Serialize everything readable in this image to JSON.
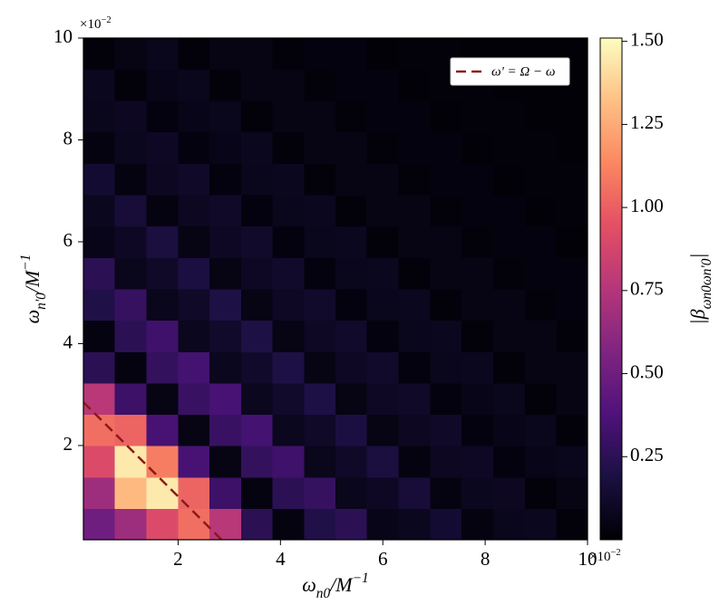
{
  "chart_data": {
    "type": "heatmap",
    "x_label": {
      "base": "ω",
      "sub": "n0",
      "mid": "/M",
      "sup": "−1"
    },
    "y_label": {
      "base": "ω",
      "sub": "n'0",
      "mid": "/M",
      "sup": "−1"
    },
    "colorbar_label": {
      "base": "|β",
      "sub": "ωn0ωn'0",
      "end": "|"
    },
    "offset_text": {
      "base": "×10",
      "sup": "−2"
    },
    "xlim": [
      0.15,
      10
    ],
    "ylim": [
      0.15,
      10
    ],
    "xticks": [
      2,
      4,
      6,
      8,
      10
    ],
    "yticks": [
      2,
      4,
      6,
      8,
      10
    ],
    "clim": [
      0,
      1.51
    ],
    "cticks": [
      0.25,
      {
        "value": 0.5,
        "label": "0.50"
      },
      0.75,
      {
        "value": 1.0,
        "label": "1.00"
      },
      1.25,
      {
        "value": 1.5,
        "label": "1.50"
      }
    ],
    "colormap": "magma",
    "x": [
      0.46,
      1.07,
      1.69,
      2.31,
      2.92,
      3.54,
      4.15,
      4.77,
      5.38,
      6.0,
      6.62,
      7.23,
      7.85,
      8.47,
      9.08,
      9.7
    ],
    "y": [
      0.46,
      1.07,
      1.69,
      2.31,
      2.92,
      3.54,
      4.15,
      4.77,
      5.38,
      6.0,
      6.62,
      7.23,
      7.85,
      8.47,
      9.08,
      9.7
    ],
    "z": [
      [
        0.5,
        0.67,
        0.91,
        1.05,
        0.77,
        0.25,
        0.04,
        0.21,
        0.25,
        0.06,
        0.08,
        0.14,
        0.04,
        0.07,
        0.08,
        0.02
      ],
      [
        0.67,
        1.3,
        1.45,
        1.02,
        0.31,
        0.04,
        0.25,
        0.29,
        0.07,
        0.1,
        0.16,
        0.04,
        0.08,
        0.09,
        0.02,
        0.05
      ],
      [
        0.91,
        1.45,
        1.1,
        0.35,
        0.05,
        0.28,
        0.32,
        0.07,
        0.11,
        0.18,
        0.04,
        0.09,
        0.1,
        0.03,
        0.06,
        0.07
      ],
      [
        1.05,
        1.02,
        0.35,
        0.05,
        0.3,
        0.34,
        0.08,
        0.11,
        0.19,
        0.05,
        0.09,
        0.11,
        0.03,
        0.06,
        0.07,
        0.02
      ],
      [
        0.77,
        0.31,
        0.05,
        0.3,
        0.35,
        0.08,
        0.12,
        0.2,
        0.05,
        0.1,
        0.11,
        0.03,
        0.06,
        0.07,
        0.02,
        0.05
      ],
      [
        0.25,
        0.04,
        0.28,
        0.34,
        0.08,
        0.12,
        0.2,
        0.05,
        0.1,
        0.12,
        0.03,
        0.07,
        0.08,
        0.02,
        0.05,
        0.05
      ],
      [
        0.04,
        0.25,
        0.32,
        0.08,
        0.12,
        0.2,
        0.05,
        0.1,
        0.12,
        0.03,
        0.07,
        0.08,
        0.02,
        0.05,
        0.05,
        0.02
      ],
      [
        0.21,
        0.29,
        0.07,
        0.11,
        0.2,
        0.05,
        0.1,
        0.12,
        0.03,
        0.07,
        0.08,
        0.02,
        0.05,
        0.05,
        0.02,
        0.03
      ],
      [
        0.25,
        0.07,
        0.11,
        0.19,
        0.05,
        0.1,
        0.12,
        0.03,
        0.07,
        0.08,
        0.02,
        0.05,
        0.05,
        0.02,
        0.03,
        0.03
      ],
      [
        0.06,
        0.1,
        0.18,
        0.05,
        0.1,
        0.12,
        0.03,
        0.07,
        0.08,
        0.02,
        0.05,
        0.05,
        0.02,
        0.03,
        0.03,
        0.01
      ],
      [
        0.08,
        0.16,
        0.04,
        0.09,
        0.11,
        0.03,
        0.07,
        0.08,
        0.02,
        0.05,
        0.05,
        0.02,
        0.03,
        0.03,
        0.01,
        0.02
      ],
      [
        0.14,
        0.04,
        0.09,
        0.11,
        0.03,
        0.07,
        0.08,
        0.02,
        0.05,
        0.05,
        0.02,
        0.03,
        0.03,
        0.01,
        0.02,
        0.02
      ],
      [
        0.04,
        0.08,
        0.1,
        0.03,
        0.06,
        0.08,
        0.02,
        0.05,
        0.05,
        0.02,
        0.03,
        0.03,
        0.01,
        0.02,
        0.02,
        0.01
      ],
      [
        0.07,
        0.09,
        0.03,
        0.06,
        0.07,
        0.02,
        0.05,
        0.05,
        0.02,
        0.03,
        0.03,
        0.01,
        0.02,
        0.02,
        0.01,
        0.01
      ],
      [
        0.08,
        0.02,
        0.06,
        0.07,
        0.02,
        0.05,
        0.05,
        0.02,
        0.03,
        0.03,
        0.01,
        0.02,
        0.02,
        0.01,
        0.01,
        0.01
      ],
      [
        0.02,
        0.05,
        0.07,
        0.02,
        0.05,
        0.05,
        0.02,
        0.03,
        0.03,
        0.01,
        0.02,
        0.02,
        0.01,
        0.01,
        0.01,
        0.01
      ]
    ],
    "line": {
      "name": "ω' = Ω − ω",
      "color": "#8b1a1a",
      "dashed": true,
      "x": [
        0.15,
        2.85
      ],
      "y": [
        2.85,
        0.15
      ]
    },
    "legend_loc": "upper right"
  }
}
